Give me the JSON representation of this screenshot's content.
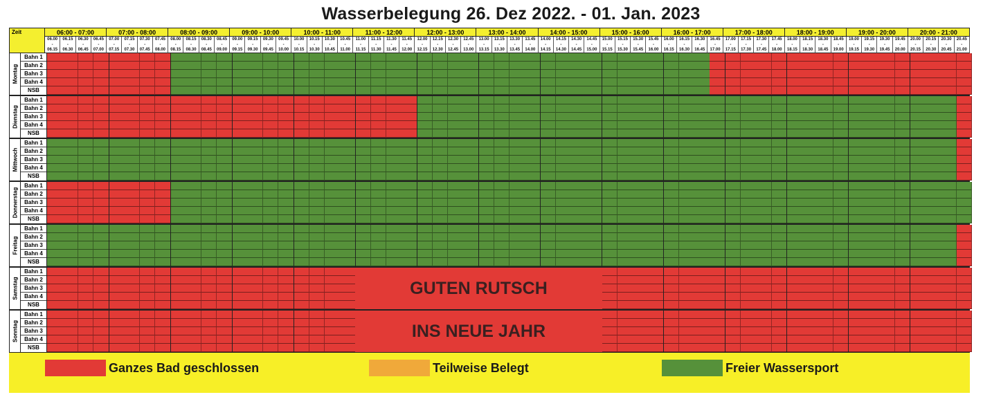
{
  "title": "Wasserbelegung 26. Dez 2022. - 01. Jan. 2023",
  "zeit_label": "Zeit",
  "hours": [
    "06:00 - 07:00",
    "07:00 - 08:00",
    "08:00 - 09:00",
    "09:00 - 10:00",
    "10:00 - 11:00",
    "11:00 - 12:00",
    "12:00 - 13:00",
    "13:00 - 14:00",
    "14:00 - 15:00",
    "15:00 - 16:00",
    "16:00 - 17:00",
    "17:00 - 18:00",
    "18:00 - 19:00",
    "19:00 - 20:00",
    "20:00 - 21:00"
  ],
  "lanes": [
    "Bahn 1",
    "Bahn 2",
    "Bahn 3",
    "Bahn 4",
    "NSB"
  ],
  "colors": {
    "closed": "#e23a36",
    "partial": "#f0a93a",
    "free": "#56913a",
    "yellow": "#f4ef2f"
  },
  "days": [
    {
      "name": "Montag",
      "segments": [
        {
          "state": "closed",
          "slots": 8
        },
        {
          "state": "free",
          "slots": 35
        },
        {
          "state": "closed",
          "slots": 17
        }
      ]
    },
    {
      "name": "Dienstag",
      "segments": [
        {
          "state": "closed",
          "slots": 24
        },
        {
          "state": "free",
          "slots": 35
        },
        {
          "state": "closed",
          "slots": 1
        }
      ]
    },
    {
      "name": "Mittwoch",
      "segments": [
        {
          "state": "free",
          "slots": 59
        },
        {
          "state": "closed",
          "slots": 1
        }
      ]
    },
    {
      "name": "Donnerstag",
      "segments": [
        {
          "state": "closed",
          "slots": 8
        },
        {
          "state": "free",
          "slots": 52
        }
      ]
    },
    {
      "name": "Freitag",
      "segments": [
        {
          "state": "free",
          "slots": 59
        },
        {
          "state": "closed",
          "slots": 1
        }
      ]
    },
    {
      "name": "Samstag",
      "segments": [
        {
          "state": "closed",
          "slots": 60
        }
      ]
    },
    {
      "name": "Sonntag",
      "segments": [
        {
          "state": "closed",
          "slots": 60
        }
      ]
    }
  ],
  "overlay": {
    "line1": "GUTEN RUTSCH",
    "line2": "INS NEUE JAHR"
  },
  "legend": {
    "closed": "Ganzes Bad geschlossen",
    "partial": "Teilweise Belegt",
    "free": "Freier Wassersport"
  }
}
